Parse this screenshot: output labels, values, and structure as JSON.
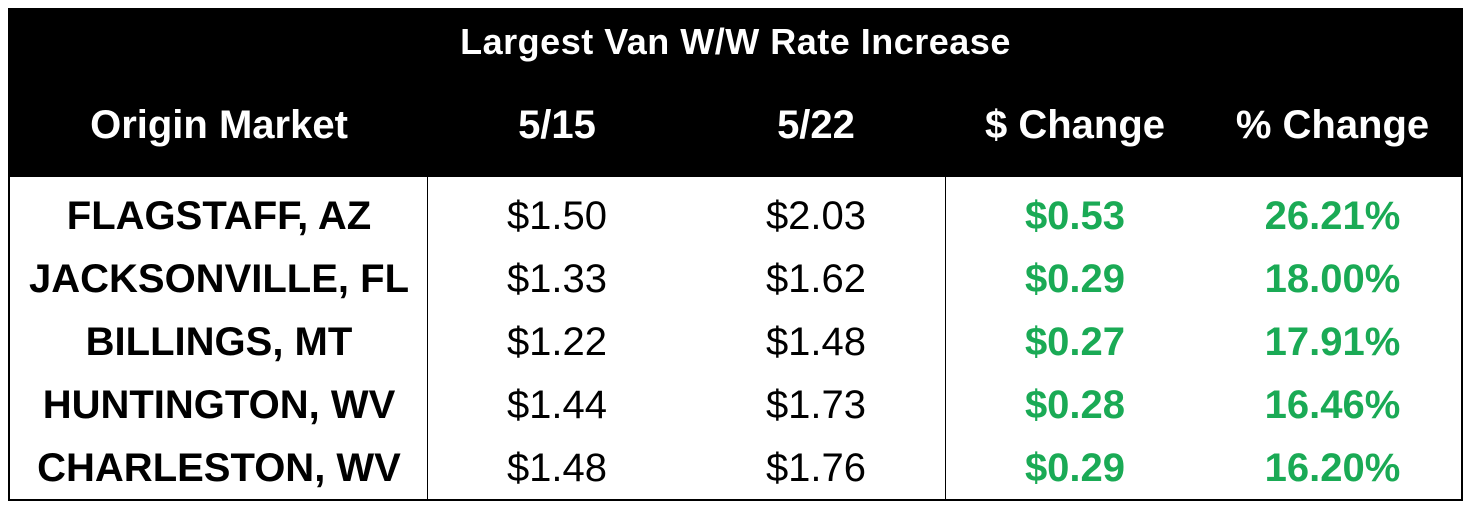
{
  "chart_data": {
    "type": "table",
    "title": "Largest Van W/W Rate Increase",
    "columns": [
      "Origin Market",
      "5/15",
      "5/22",
      "$ Change",
      "% Change"
    ],
    "rows": [
      [
        "FLAGSTAFF, AZ",
        "$1.50",
        "$2.03",
        "$0.53",
        "26.21%"
      ],
      [
        "JACKSONVILLE, FL",
        "$1.33",
        "$1.62",
        "$0.29",
        "18.00%"
      ],
      [
        "BILLINGS, MT",
        "$1.22",
        "$1.48",
        "$0.27",
        "17.91%"
      ],
      [
        "HUNTINGTON, WV",
        "$1.44",
        "$1.73",
        "$0.28",
        "16.46%"
      ],
      [
        "CHARLESTON, WV",
        "$1.48",
        "$1.76",
        "$0.29",
        "16.20%"
      ]
    ]
  },
  "colors": {
    "header_background": "#000000",
    "header_text": "#ffffff",
    "change_text": "#1aaa55",
    "body_text": "#000000"
  }
}
